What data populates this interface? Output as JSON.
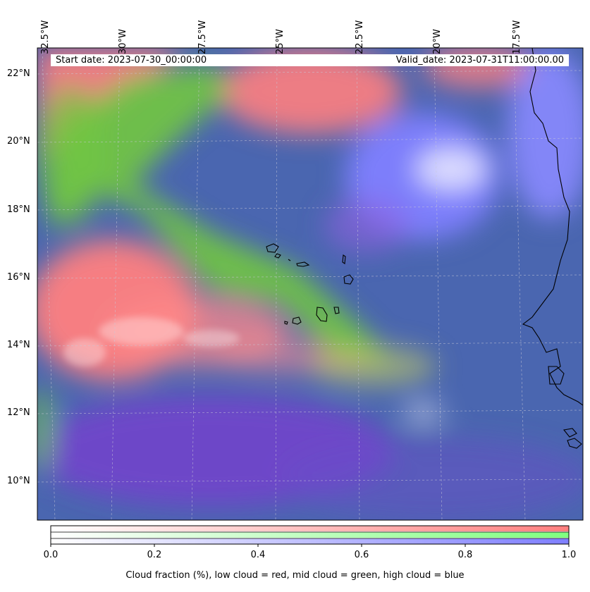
{
  "map": {
    "start_date": "Start date: 2023-07-30_00:00:00",
    "valid_date": "Valid_date: 2023-07-31T11:00:00.00",
    "longitude_labels": [
      "32.5°W",
      "30°W",
      "27.5°W",
      "25°W",
      "22.5°W",
      "20°W",
      "17.5°W"
    ],
    "latitude_labels": [
      "22°N",
      "20°N",
      "18°N",
      "16°N",
      "14°N",
      "12°N",
      "10°N"
    ],
    "colors": {
      "low_cloud": "#ff7f7f",
      "mid_cloud": "#7fdf5f",
      "high_cloud": "#7f7fff",
      "clear_sky": "#4a66b0"
    }
  },
  "colorbar": {
    "ticks": [
      "0.0",
      "0.2",
      "0.4",
      "0.6",
      "0.8",
      "1.0"
    ],
    "title": "Cloud fraction (%), low cloud = red, mid cloud = green, high cloud = blue"
  }
}
